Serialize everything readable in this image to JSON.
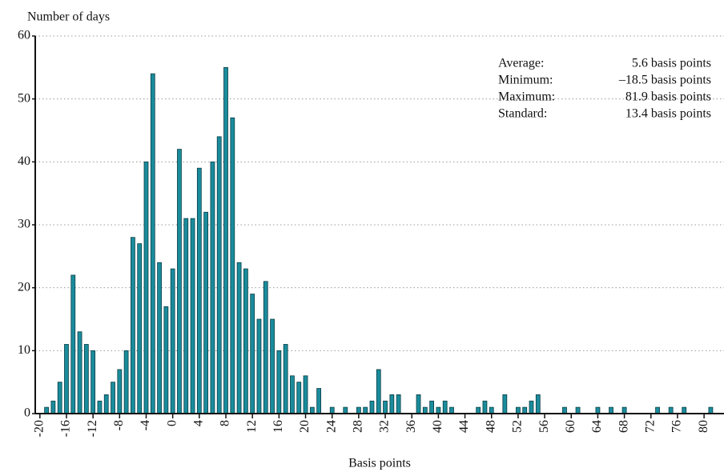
{
  "chart_data": {
    "type": "bar",
    "y_label": "Number of days",
    "x_label": "Basis points",
    "annotations": [
      {
        "label": "Average:",
        "value": "5.6 basis points"
      },
      {
        "label": "Minimum:",
        "value": "–18.5 basis points"
      },
      {
        "label": "Maximum:",
        "value": "81.9 basis points"
      },
      {
        "label": "Standard:",
        "value": "13.4 basis points"
      }
    ],
    "x": [
      -19,
      -18,
      -17,
      -16,
      -15,
      -14,
      -13,
      -12,
      -11,
      -10,
      -9,
      -8,
      -7,
      -6,
      -5,
      -4,
      -3,
      -2,
      -1,
      0,
      1,
      2,
      3,
      4,
      5,
      6,
      7,
      8,
      9,
      10,
      11,
      12,
      13,
      14,
      15,
      16,
      17,
      18,
      19,
      20,
      21,
      22,
      23,
      24,
      25,
      26,
      27,
      28,
      29,
      30,
      31,
      32,
      33,
      34,
      35,
      36,
      37,
      38,
      39,
      40,
      41,
      42,
      43,
      44,
      45,
      46,
      47,
      48,
      49,
      50,
      51,
      52,
      53,
      54,
      55,
      56,
      57,
      58,
      59,
      60,
      61,
      62,
      63,
      64,
      65,
      66,
      67,
      68,
      69,
      70,
      71,
      72,
      73,
      74,
      75,
      76,
      77,
      78,
      79,
      80,
      81
    ],
    "values": [
      1,
      2,
      5,
      11,
      22,
      13,
      11,
      10,
      2,
      3,
      5,
      7,
      10,
      28,
      27,
      40,
      54,
      24,
      17,
      23,
      42,
      31,
      31,
      39,
      32,
      40,
      44,
      55,
      47,
      24,
      23,
      19,
      15,
      21,
      15,
      10,
      11,
      6,
      5,
      6,
      1,
      4,
      0,
      1,
      0,
      1,
      0,
      1,
      1,
      2,
      7,
      2,
      3,
      3,
      0,
      0,
      3,
      1,
      2,
      1,
      2,
      1,
      0,
      0,
      0,
      1,
      2,
      1,
      0,
      3,
      0,
      1,
      1,
      2,
      3,
      0,
      0,
      0,
      1,
      0,
      1,
      0,
      0,
      1,
      0,
      1,
      0,
      1,
      0,
      0,
      0,
      0,
      1,
      0,
      1,
      0,
      1,
      0,
      0,
      0,
      1
    ],
    "color": "#1a8c9c",
    "xlim": [
      -20.7,
      83
    ],
    "xticks": [
      -20,
      -16,
      -12,
      -8,
      -4,
      0,
      4,
      8,
      12,
      16,
      20,
      24,
      28,
      32,
      36,
      40,
      44,
      48,
      52,
      56,
      60,
      64,
      68,
      72,
      76,
      80
    ],
    "ylim": [
      0,
      60
    ],
    "yticks": [
      0,
      10,
      20,
      30,
      40,
      50,
      60
    ],
    "grid": true
  }
}
